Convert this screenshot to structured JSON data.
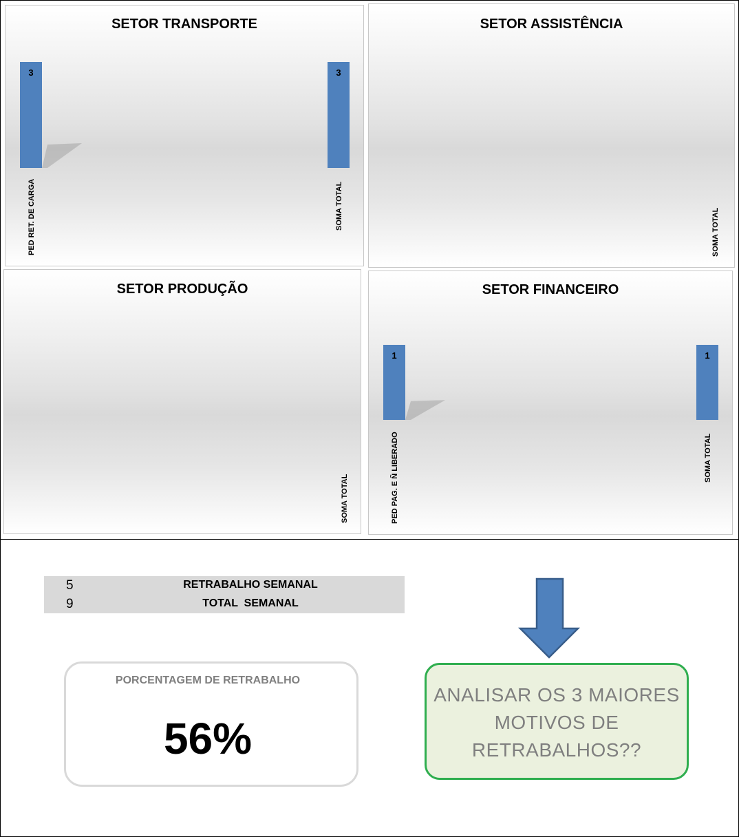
{
  "chart_data": [
    {
      "type": "bar",
      "title": "SETOR TRANSPORTE",
      "categories": [
        "PED RET. DE CARGA",
        "SOMA TOTAL"
      ],
      "values": [
        3,
        3
      ],
      "ylim": [
        0,
        3
      ]
    },
    {
      "type": "bar",
      "title": "SETOR ASSISTÊNCIA",
      "categories": [
        "SOMA TOTAL"
      ],
      "values": [
        0
      ],
      "ylim": [
        0,
        3
      ]
    },
    {
      "type": "bar",
      "title": "SETOR PRODUÇÃO",
      "categories": [
        "SOMA TOTAL"
      ],
      "values": [
        0
      ],
      "ylim": [
        0,
        3
      ]
    },
    {
      "type": "bar",
      "title": "SETOR FINANCEIRO",
      "categories": [
        "PED PAG. E Ñ LIBERADO",
        "SOMA TOTAL"
      ],
      "values": [
        1,
        1
      ],
      "ylim": [
        0,
        1
      ]
    }
  ],
  "summary": {
    "rows": [
      {
        "value": "5",
        "label": "RETRABALHO SEMANAL"
      },
      {
        "value": "9",
        "label": "TOTAL  SEMANAL"
      }
    ],
    "percentage_label": "PORCENTAGEM DE RETRABALHO",
    "percentage_value": "56%",
    "action_text": "ANALISAR OS 3 MAIORES MOTIVOS DE RETRABALHOS??"
  },
  "colors": {
    "bar": "#4f81bd",
    "bar_dark": "#3a6aa5",
    "action_border": "#2fae4f",
    "action_fill": "#ebf1de"
  }
}
